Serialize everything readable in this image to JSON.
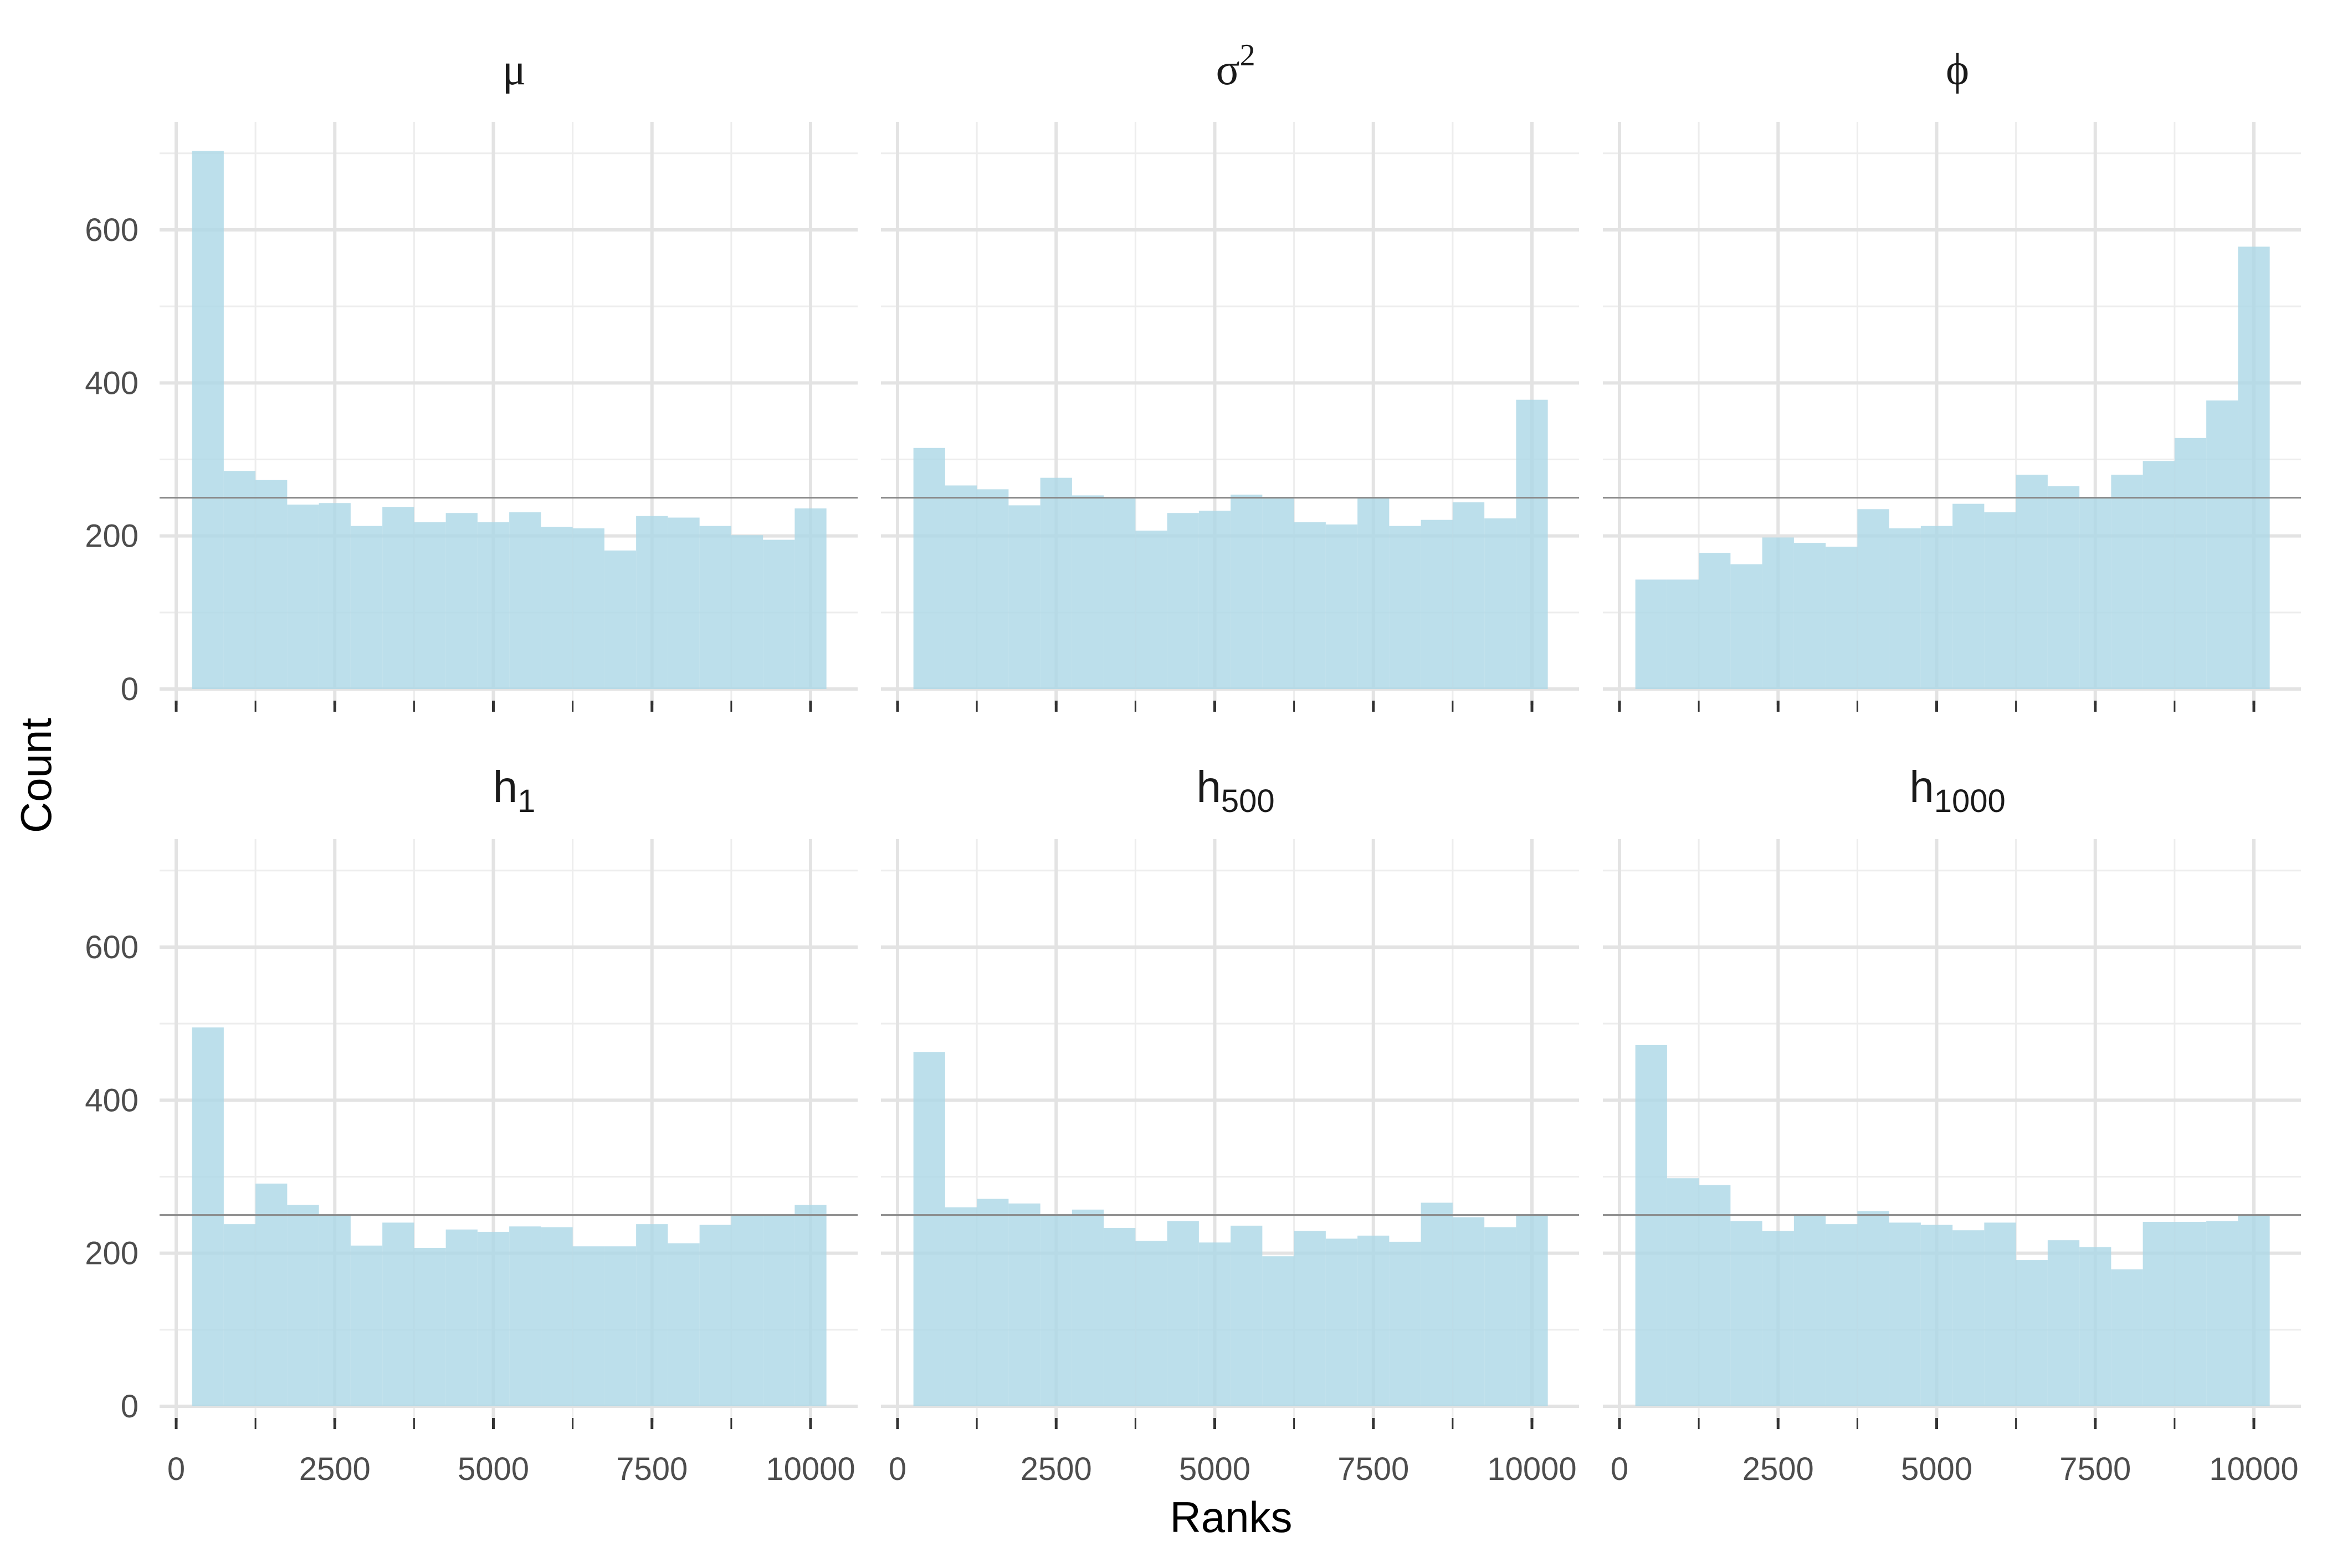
{
  "chart_data": {
    "type": "bar",
    "xlabel": "Ranks",
    "ylabel": "Count",
    "xlim": [
      0,
      10000
    ],
    "ylim": [
      0,
      700
    ],
    "x_ticks": [
      0,
      2500,
      5000,
      7500,
      10000
    ],
    "y_ticks": [
      0,
      200,
      400,
      600
    ],
    "reference_line": 250,
    "bin_width": 500,
    "bin_centers": [
      500,
      1000,
      1500,
      2000,
      2500,
      3000,
      3500,
      4000,
      4500,
      5000,
      5500,
      6000,
      6500,
      7000,
      7500,
      8000,
      8500,
      9000,
      9500,
      10000
    ],
    "fill_color": "#add8e6",
    "grid": true,
    "panels": [
      {
        "id": "mu",
        "label": "μ",
        "values": [
          703,
          285,
          273,
          241,
          243,
          213,
          238,
          218,
          230,
          218,
          231,
          212,
          210,
          181,
          226,
          224,
          213,
          201,
          195,
          236
        ]
      },
      {
        "id": "sigma2",
        "label": "σ",
        "label_sup": "2",
        "values": [
          315,
          266,
          261,
          240,
          276,
          253,
          249,
          207,
          230,
          233,
          254,
          251,
          218,
          215,
          250,
          213,
          221,
          244,
          223,
          378
        ]
      },
      {
        "id": "phi",
        "label": "ϕ",
        "values": [
          143,
          143,
          178,
          163,
          198,
          191,
          186,
          235,
          210,
          213,
          242,
          231,
          280,
          265,
          251,
          280,
          298,
          328,
          377,
          578
        ]
      },
      {
        "id": "h1",
        "label": "h",
        "label_sub": "1",
        "values": [
          495,
          238,
          291,
          263,
          249,
          210,
          240,
          207,
          231,
          228,
          235,
          234,
          209,
          209,
          238,
          213,
          237,
          249,
          249,
          263
        ]
      },
      {
        "id": "h500",
        "label": "h",
        "label_sub": "500",
        "values": [
          463,
          260,
          271,
          265,
          250,
          257,
          233,
          216,
          242,
          214,
          236,
          196,
          229,
          219,
          223,
          215,
          266,
          247,
          234,
          251
        ]
      },
      {
        "id": "h1000",
        "label": "h",
        "label_sub": "1000",
        "values": [
          472,
          298,
          289,
          242,
          229,
          251,
          238,
          255,
          240,
          237,
          230,
          240,
          191,
          217,
          208,
          179,
          241,
          241,
          242,
          250
        ]
      }
    ]
  }
}
